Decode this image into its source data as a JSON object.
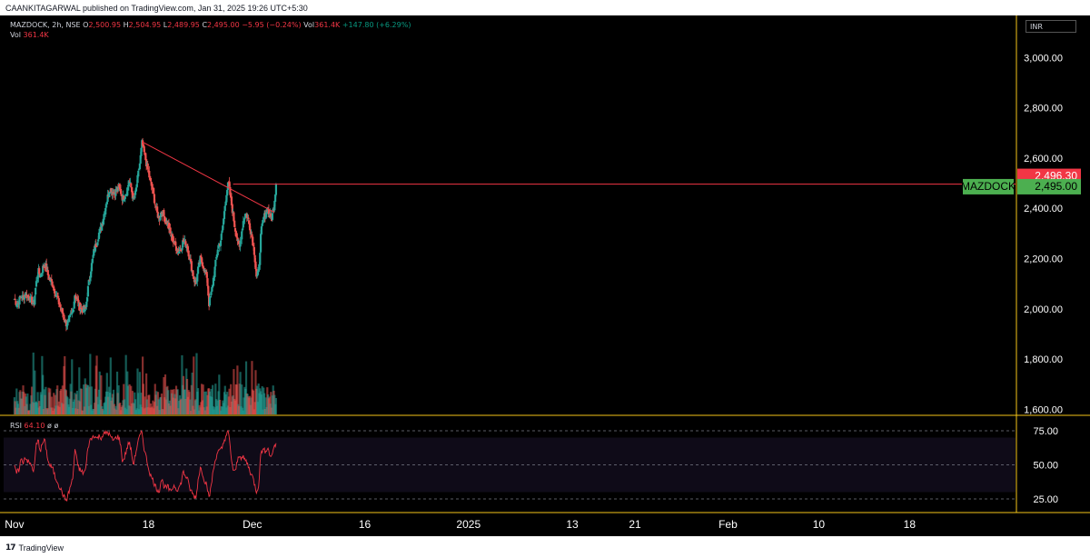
{
  "publisher_line": "CAANKITAGARWAL published on TradingView.com, Jan 31, 2025 19:26 UTC+5:30",
  "legend": {
    "symbol": "MAZDOCK, 2h, NSE",
    "o_label": "O",
    "o_value": "2,500.95",
    "h_label": "H",
    "h_value": "2,504.95",
    "l_label": "L",
    "l_value": "2,489.95",
    "c_label": "C",
    "c_value": "2,495.00",
    "change": "−5.95 (−0.24%)",
    "vol_label": "Vol",
    "vol_value": "361.4K",
    "vol_change": "+147.80 (+6.29%)",
    "vol_line_label": "Vol",
    "vol_line_value": "361.4K"
  },
  "rsi_legend": {
    "label": "RSI",
    "value": "64.10",
    "ph1": "ø",
    "ph2": "ø"
  },
  "currency": "INR",
  "brand": {
    "logo": "17",
    "name": "TradingView"
  },
  "colors": {
    "up": "#26a69a",
    "down": "#ef5350",
    "trendline": "#f23645",
    "rsi_line": "#f23645",
    "axis_text": "#ffffff",
    "scale_border": "#f5c518",
    "label_green": "#4caf50",
    "label_red": "#f23645"
  },
  "chart_data": {
    "type": "candlestick",
    "symbol": "MAZDOCK",
    "exchange": "NSE",
    "interval": "2h",
    "currency": "INR",
    "y_ticks": [
      1600,
      1800,
      2000,
      2200,
      2400,
      2600,
      2800,
      3000
    ],
    "y_tick_labels": [
      "1,600.00",
      "1,800.00",
      "2,000.00",
      "2,200.00",
      "2,400.00",
      "2,600.00",
      "2,800.00",
      "3,000.00"
    ],
    "ylim": [
      1580,
      3160
    ],
    "x_tick_labels": [
      "Nov",
      "18",
      "Dec",
      "16",
      "2025",
      "13",
      "21",
      "Feb",
      "10",
      "18"
    ],
    "x_tick_positions": [
      0,
      62,
      110,
      162,
      210,
      258,
      287,
      330,
      372,
      414
    ],
    "x_range": [
      -5,
      463
    ],
    "last_price": 2495.0,
    "last_price_label": "2,495.00",
    "symbol_tag": "MAZDOCK",
    "high_marker": 2496.3,
    "high_marker_label": "2,496.30",
    "closes": [
      2040,
      2020,
      2030,
      2050,
      2045,
      2060,
      2050,
      2040,
      2030,
      2020,
      2100,
      2150,
      2130,
      2160,
      2180,
      2150,
      2120,
      2110,
      2090,
      2060,
      2040,
      2010,
      1990,
      1960,
      1940,
      1950,
      1970,
      1990,
      2060,
      2030,
      2010,
      2000,
      1995,
      2000,
      2080,
      2140,
      2190,
      2240,
      2260,
      2300,
      2320,
      2360,
      2400,
      2440,
      2480,
      2470,
      2460,
      2470,
      2480,
      2470,
      2440,
      2450,
      2470,
      2510,
      2480,
      2430,
      2460,
      2520,
      2580,
      2660,
      2620,
      2580,
      2540,
      2500,
      2470,
      2420,
      2380,
      2360,
      2390,
      2370,
      2350,
      2340,
      2300,
      2280,
      2260,
      2240,
      2230,
      2240,
      2270,
      2260,
      2250,
      2200,
      2160,
      2120,
      2100,
      2160,
      2200,
      2180,
      2150,
      2130,
      2020,
      2060,
      2120,
      2180,
      2240,
      2260,
      2300,
      2380,
      2460,
      2500,
      2440,
      2380,
      2320,
      2280,
      2240,
      2300,
      2360,
      2380,
      2360,
      2320,
      2280,
      2220,
      2120,
      2150,
      2300,
      2350,
      2380,
      2400,
      2370,
      2360,
      2410,
      2495
    ],
    "trendline": [
      {
        "i": 175,
        "price": 2665
      },
      {
        "i": 356,
        "price": 2385
      }
    ],
    "high_line_price": 2496.3,
    "rsi": {
      "value": 64.1,
      "levels": [
        25,
        50,
        75
      ],
      "level_labels": [
        "25.00",
        "50.00",
        "75.00"
      ],
      "overbought": 70,
      "oversold": 30,
      "ylim": [
        15,
        85
      ],
      "values": [
        48,
        44,
        46,
        54,
        52,
        56,
        53,
        51,
        49,
        45,
        64,
        68,
        60,
        66,
        68,
        58,
        50,
        49,
        46,
        40,
        38,
        33,
        30,
        26,
        24,
        29,
        35,
        40,
        62,
        52,
        47,
        45,
        44,
        47,
        63,
        68,
        70,
        72,
        69,
        71,
        70,
        72,
        73,
        74,
        72,
        69,
        68,
        70,
        71,
        66,
        52,
        56,
        62,
        67,
        60,
        50,
        58,
        66,
        71,
        74,
        62,
        55,
        48,
        42,
        39,
        35,
        32,
        31,
        40,
        35,
        33,
        34,
        30,
        33,
        35,
        32,
        33,
        36,
        45,
        42,
        40,
        33,
        30,
        27,
        26,
        40,
        48,
        44,
        38,
        36,
        25,
        35,
        46,
        54,
        60,
        60,
        62,
        68,
        72,
        74,
        59,
        47,
        44,
        52,
        58,
        55,
        55,
        53,
        50,
        45,
        42,
        36,
        30,
        36,
        60,
        61,
        60,
        63,
        58,
        56,
        64,
        64
      ]
    }
  }
}
